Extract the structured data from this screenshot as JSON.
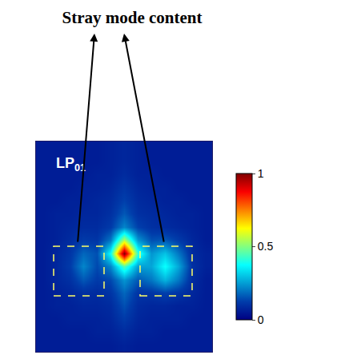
{
  "chart_data": {
    "type": "heatmap",
    "title": "Stray mode content",
    "annotations": [
      {
        "text": "LP",
        "subscript": "01"
      }
    ],
    "color": "Jet",
    "tick_labels": false,
    "x": [
      0,
      1,
      2,
      3,
      4,
      5,
      6,
      7,
      8,
      9,
      10,
      11,
      12
    ],
    "y": [
      0,
      1,
      2,
      3,
      4,
      5,
      6,
      7,
      8,
      9,
      10,
      11,
      12,
      13,
      14,
      15
    ],
    "xlim": [
      -0.5,
      12.5
    ],
    "ylim": [
      15.5,
      -0.5
    ],
    "z": [
      [
        0.06,
        0.06,
        0.06,
        0.06,
        0.06,
        0.07,
        0.08,
        0.07,
        0.06,
        0.06,
        0.06,
        0.06,
        0.06
      ],
      [
        0.06,
        0.06,
        0.06,
        0.06,
        0.06,
        0.07,
        0.08,
        0.07,
        0.06,
        0.06,
        0.06,
        0.06,
        0.06
      ],
      [
        0.06,
        0.06,
        0.06,
        0.06,
        0.07,
        0.07,
        0.09,
        0.07,
        0.07,
        0.06,
        0.06,
        0.06,
        0.06
      ],
      [
        0.06,
        0.06,
        0.06,
        0.07,
        0.07,
        0.08,
        0.11,
        0.08,
        0.07,
        0.07,
        0.06,
        0.06,
        0.06
      ],
      [
        0.06,
        0.06,
        0.07,
        0.07,
        0.08,
        0.09,
        0.13,
        0.09,
        0.08,
        0.07,
        0.07,
        0.06,
        0.06
      ],
      [
        0.06,
        0.07,
        0.07,
        0.08,
        0.08,
        0.1,
        0.16,
        0.1,
        0.09,
        0.08,
        0.07,
        0.07,
        0.06
      ],
      [
        0.06,
        0.07,
        0.08,
        0.09,
        0.09,
        0.12,
        0.22,
        0.13,
        0.1,
        0.09,
        0.08,
        0.07,
        0.06
      ],
      [
        0.06,
        0.07,
        0.09,
        0.12,
        0.11,
        0.2,
        0.55,
        0.24,
        0.15,
        0.16,
        0.12,
        0.08,
        0.06
      ],
      [
        0.06,
        0.08,
        0.11,
        0.18,
        0.15,
        0.38,
        1.0,
        0.42,
        0.24,
        0.3,
        0.2,
        0.09,
        0.07
      ],
      [
        0.06,
        0.08,
        0.12,
        0.22,
        0.14,
        0.22,
        0.45,
        0.25,
        0.26,
        0.38,
        0.26,
        0.1,
        0.07
      ],
      [
        0.06,
        0.08,
        0.1,
        0.16,
        0.12,
        0.14,
        0.24,
        0.16,
        0.2,
        0.28,
        0.2,
        0.09,
        0.06
      ],
      [
        0.06,
        0.07,
        0.08,
        0.1,
        0.09,
        0.11,
        0.18,
        0.11,
        0.11,
        0.13,
        0.11,
        0.08,
        0.06
      ],
      [
        0.06,
        0.07,
        0.07,
        0.08,
        0.08,
        0.09,
        0.15,
        0.09,
        0.08,
        0.08,
        0.07,
        0.07,
        0.06
      ],
      [
        0.06,
        0.06,
        0.07,
        0.07,
        0.07,
        0.08,
        0.12,
        0.08,
        0.07,
        0.07,
        0.07,
        0.06,
        0.06
      ],
      [
        0.06,
        0.06,
        0.06,
        0.06,
        0.07,
        0.07,
        0.09,
        0.07,
        0.07,
        0.06,
        0.06,
        0.06,
        0.06
      ],
      [
        0.06,
        0.06,
        0.06,
        0.06,
        0.06,
        0.06,
        0.07,
        0.06,
        0.06,
        0.06,
        0.06,
        0.06,
        0.06
      ]
    ],
    "colorbar": {
      "range": [
        0,
        1
      ],
      "ticks": [
        0,
        0.5,
        1
      ]
    }
  }
}
